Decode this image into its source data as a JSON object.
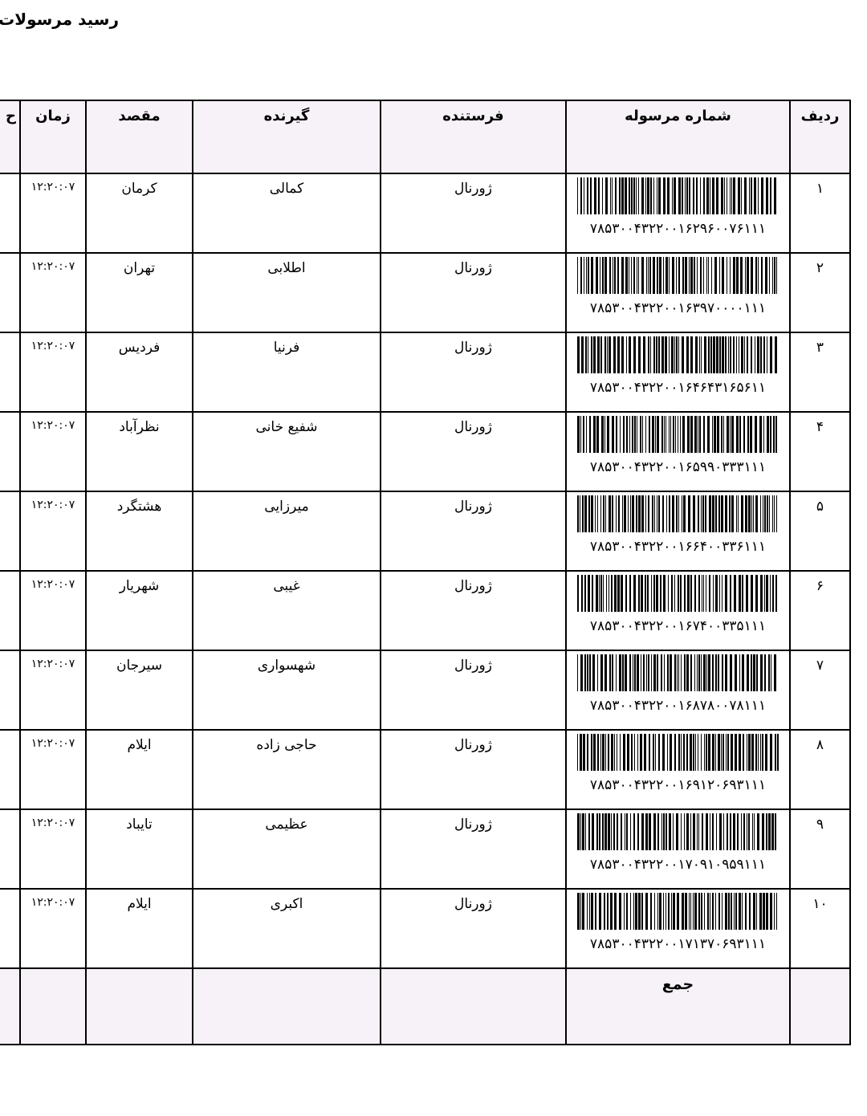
{
  "header": {
    "title": "رسید مرسولات ان"
  },
  "table": {
    "headers": [
      "ردیف",
      "شماره مرسوله",
      "فرستنده",
      "گیرنده",
      "مقصد",
      "زمان",
      "ح"
    ],
    "rows": [
      {
        "index": "۱",
        "tracking": "۷۸۵۳۰۰۴۳۲۲۰۰۱۶۲۹۶۰۰۷۶۱۱۱",
        "sender": "ژورنال",
        "receiver": "کمالی",
        "destination": "کرمان",
        "time": "۱۲:۲۰:۰۷"
      },
      {
        "index": "۲",
        "tracking": "۷۸۵۳۰۰۴۳۲۲۰۰۱۶۳۹۷۰۰۰۰۱۱۱",
        "sender": "ژورنال",
        "receiver": "اطلابی",
        "destination": "تهران",
        "time": "۱۲:۲۰:۰۷"
      },
      {
        "index": "۳",
        "tracking": "۷۸۵۳۰۰۴۳۲۲۰۰۱۶۴۶۴۳۱۶۵۶۱۱",
        "sender": "ژورنال",
        "receiver": "فرنیا",
        "destination": "فردیس",
        "time": "۱۲:۲۰:۰۷"
      },
      {
        "index": "۴",
        "tracking": "۷۸۵۳۰۰۴۳۲۲۰۰۱۶۵۹۹۰۳۳۳۱۱۱",
        "sender": "ژورنال",
        "receiver": "شفیع خانی",
        "destination": "نظرآباد",
        "time": "۱۲:۲۰:۰۷"
      },
      {
        "index": "۵",
        "tracking": "۷۸۵۳۰۰۴۳۲۲۰۰۱۶۶۴۰۰۳۳۶۱۱۱",
        "sender": "ژورنال",
        "receiver": "میرزایی",
        "destination": "هشتگرد",
        "time": "۱۲:۲۰:۰۷"
      },
      {
        "index": "۶",
        "tracking": "۷۸۵۳۰۰۴۳۲۲۰۰۱۶۷۴۰۰۳۳۵۱۱۱",
        "sender": "ژورنال",
        "receiver": "غیبی",
        "destination": "شهریار",
        "time": "۱۲:۲۰:۰۷"
      },
      {
        "index": "۷",
        "tracking": "۷۸۵۳۰۰۴۳۲۲۰۰۱۶۸۷۸۰۰۷۸۱۱۱",
        "sender": "ژورنال",
        "receiver": "شهسواری",
        "destination": "سیرجان",
        "time": "۱۲:۲۰:۰۷"
      },
      {
        "index": "۸",
        "tracking": "۷۸۵۳۰۰۴۳۲۲۰۰۱۶۹۱۲۰۶۹۳۱۱۱",
        "sender": "ژورنال",
        "receiver": "حاجی زاده",
        "destination": "ایلام",
        "time": "۱۲:۲۰:۰۷"
      },
      {
        "index": "۹",
        "tracking": "۷۸۵۳۰۰۴۳۲۲۰۰۱۷۰۹۱۰۹۵۹۱۱۱",
        "sender": "ژورنال",
        "receiver": "عظیمی",
        "destination": "تایباد",
        "time": "۱۲:۲۰:۰۷"
      },
      {
        "index": "۱۰",
        "tracking": "۷۸۵۳۰۰۴۳۲۲۰۰۱۷۱۳۷۰۶۹۳۱۱۱",
        "sender": "ژورنال",
        "receiver": "اکبری",
        "destination": "ایلام",
        "time": "۱۲:۲۰:۰۷"
      }
    ],
    "footer": "جمع"
  }
}
